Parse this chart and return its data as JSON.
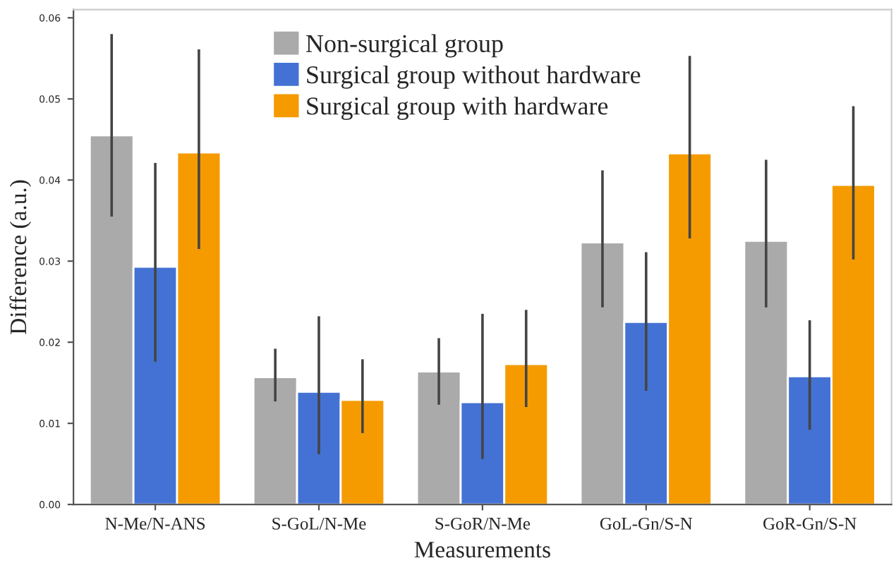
{
  "chart_data": {
    "type": "bar",
    "xlabel": "Measurements",
    "ylabel": "Difference (a.u.)",
    "categories": [
      "N-Me/N-ANS",
      "S-GoL/N-Me",
      "S-GoR/N-Me",
      "GoL-Gn/S-N",
      "GoR-Gn/S-N"
    ],
    "series": [
      {
        "name": "Non-surgical group",
        "color": "#aaaaaa",
        "values": [
          0.0455,
          0.0157,
          0.0164,
          0.0323,
          0.0325
        ],
        "errors": [
          [
            0.0355,
            0.058
          ],
          [
            0.0127,
            0.0192
          ],
          [
            0.0123,
            0.0205
          ],
          [
            0.0243,
            0.0412
          ],
          [
            0.0243,
            0.0425
          ]
        ]
      },
      {
        "name": "Surgical group without hardware",
        "color": "#4472d4",
        "values": [
          0.0293,
          0.0139,
          0.0126,
          0.0225,
          0.0158
        ],
        "errors": [
          [
            0.0176,
            0.0421
          ],
          [
            0.0062,
            0.0232
          ],
          [
            0.0056,
            0.0235
          ],
          [
            0.014,
            0.0311
          ],
          [
            0.0092,
            0.0227
          ]
        ]
      },
      {
        "name": "Surgical group with hardware",
        "color": "#f59b00",
        "values": [
          0.0434,
          0.0129,
          0.0173,
          0.0433,
          0.0394
        ],
        "errors": [
          [
            0.0315,
            0.0561
          ],
          [
            0.0088,
            0.0179
          ],
          [
            0.012,
            0.024
          ],
          [
            0.0328,
            0.0553
          ],
          [
            0.0302,
            0.0491
          ]
        ]
      }
    ],
    "ylim": [
      0,
      0.061
    ],
    "yticks": [
      {
        "value": 0,
        "label": "0.00"
      },
      {
        "value": 0.01,
        "label": "0.01"
      },
      {
        "value": 0.02,
        "label": "0.02"
      },
      {
        "value": 0.03,
        "label": "0.03"
      },
      {
        "value": 0.04,
        "label": "0.04"
      },
      {
        "value": 0.05,
        "label": "0.05"
      },
      {
        "value": 0.06,
        "label": "0.06"
      }
    ],
    "legend": "top",
    "grid": false
  }
}
